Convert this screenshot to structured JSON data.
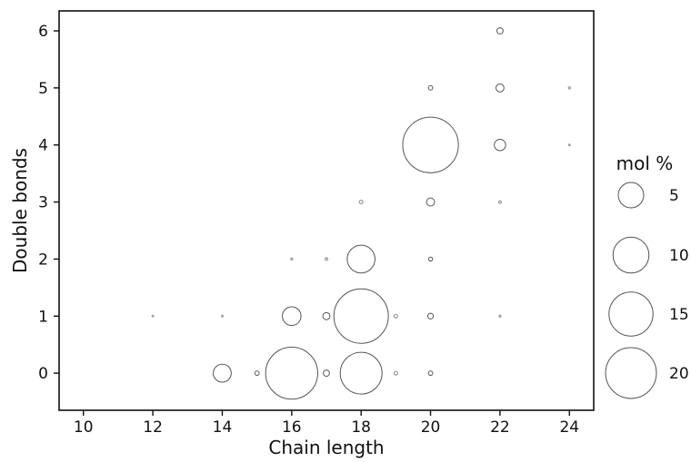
{
  "chart_data": {
    "type": "scatter",
    "subtype": "bubble",
    "title": "",
    "xlabel": "Chain length",
    "ylabel": "Double bonds",
    "xlim": [
      9.3,
      24.7
    ],
    "ylim": [
      -0.65,
      6.35
    ],
    "xticks": [
      10,
      12,
      14,
      16,
      18,
      20,
      22,
      24
    ],
    "yticks": [
      0,
      1,
      2,
      3,
      4,
      5,
      6
    ],
    "grid": false,
    "legend": {
      "title": "mol %",
      "placement": "right",
      "entries": [
        {
          "label": "5",
          "value": 5
        },
        {
          "label": "10",
          "value": 10
        },
        {
          "label": "15",
          "value": 15
        },
        {
          "label": "20",
          "value": 20
        }
      ]
    },
    "size_variable": "mol %",
    "points": [
      {
        "x": 12,
        "y": 1,
        "size": 0.02
      },
      {
        "x": 14,
        "y": 0,
        "size": 2.5
      },
      {
        "x": 14,
        "y": 1,
        "size": 0.02
      },
      {
        "x": 15,
        "y": 0,
        "size": 0.15
      },
      {
        "x": 16,
        "y": 0,
        "size": 21.0
      },
      {
        "x": 16,
        "y": 1,
        "size": 2.7
      },
      {
        "x": 16,
        "y": 2,
        "size": 0.03
      },
      {
        "x": 17,
        "y": 0,
        "size": 0.3
      },
      {
        "x": 17,
        "y": 1,
        "size": 0.4
      },
      {
        "x": 17,
        "y": 2,
        "size": 0.05
      },
      {
        "x": 18,
        "y": 0,
        "size": 13.5
      },
      {
        "x": 18,
        "y": 1,
        "size": 23.0
      },
      {
        "x": 18,
        "y": 2,
        "size": 6.0
      },
      {
        "x": 18,
        "y": 3,
        "size": 0.1
      },
      {
        "x": 19,
        "y": 0,
        "size": 0.1
      },
      {
        "x": 19,
        "y": 1,
        "size": 0.1
      },
      {
        "x": 20,
        "y": 0,
        "size": 0.15
      },
      {
        "x": 20,
        "y": 1,
        "size": 0.25
      },
      {
        "x": 20,
        "y": 2,
        "size": 0.12
      },
      {
        "x": 20,
        "y": 3,
        "size": 0.5
      },
      {
        "x": 20,
        "y": 4,
        "size": 24.0
      },
      {
        "x": 20,
        "y": 5,
        "size": 0.15
      },
      {
        "x": 22,
        "y": 1,
        "size": 0.03
      },
      {
        "x": 22,
        "y": 3,
        "size": 0.05
      },
      {
        "x": 22,
        "y": 4,
        "size": 1.0
      },
      {
        "x": 22,
        "y": 5,
        "size": 0.5
      },
      {
        "x": 22,
        "y": 6,
        "size": 0.3
      },
      {
        "x": 24,
        "y": 4,
        "size": 0.02
      },
      {
        "x": 24,
        "y": 5,
        "size": 0.03
      }
    ]
  }
}
